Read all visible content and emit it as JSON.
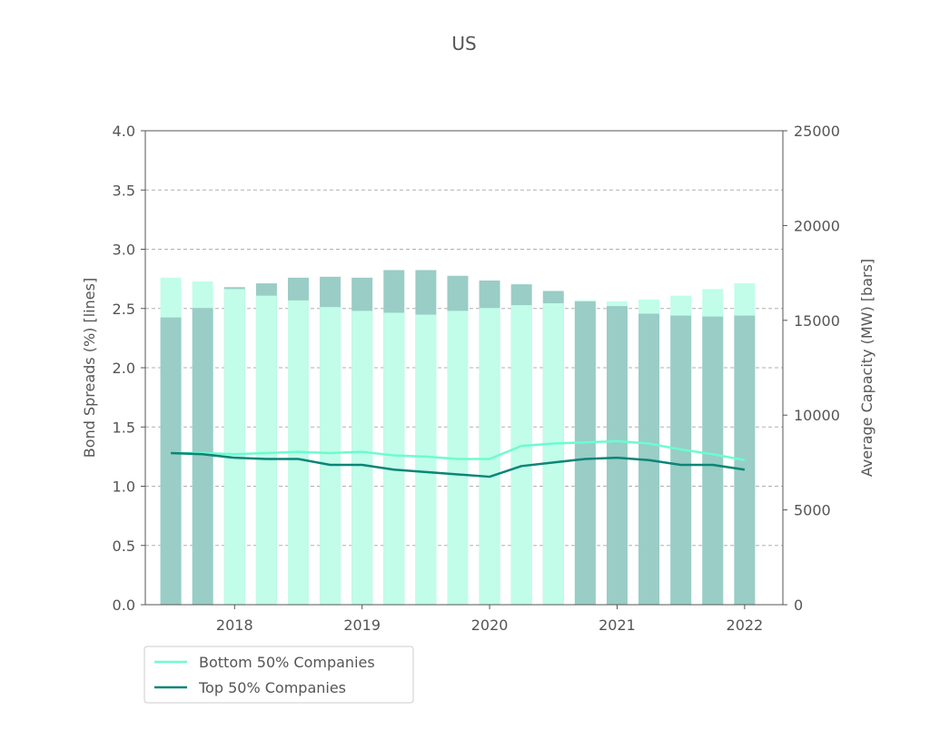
{
  "chart_data": {
    "type": "bar+line",
    "title": "US",
    "ylabel_left": "Bond Spreads (%) [lines]",
    "ylabel_right": "Average Capacity (MW) [bars]",
    "ylim_left": [
      0,
      4.0
    ],
    "ylim_right": [
      0,
      25000
    ],
    "yticks_left": [
      "0.0",
      "0.5",
      "1.0",
      "1.5",
      "2.0",
      "2.5",
      "3.0",
      "3.5",
      "4.0"
    ],
    "yticks_right": [
      "0",
      "5000",
      "10000",
      "15000",
      "20000",
      "25000"
    ],
    "xticks": [
      "2018",
      "2019",
      "2020",
      "2021",
      "2022"
    ],
    "grid": "horizontal dashed",
    "legend_position": "below-left",
    "colors": {
      "light_bar": "#c1fde9",
      "dark_bar": "#99cdc6",
      "bottom_line": "#6dfbd0",
      "top_line": "#0b8577",
      "axis": "#555555",
      "grid": "#b0b0b0"
    },
    "x": [
      2017.5,
      2017.75,
      2018.0,
      2018.25,
      2018.5,
      2018.75,
      2019.0,
      2019.25,
      2019.5,
      2019.75,
      2020.0,
      2020.25,
      2020.5,
      2020.75,
      2021.0,
      2021.25,
      2021.5,
      2021.75,
      2022.0
    ],
    "bar_series": [
      {
        "color_key": "light_bar",
        "values": [
          17250,
          17050,
          16650,
          16300,
          16050,
          15700,
          15500,
          15400,
          15300,
          15500,
          15650,
          15800,
          15900,
          16050,
          16000,
          16100,
          16300,
          16650,
          16950
        ]
      },
      {
        "color_key": "dark_bar",
        "values": [
          15150,
          15650,
          16750,
          16950,
          17250,
          17300,
          17250,
          17650,
          17650,
          17350,
          17100,
          16900,
          16550,
          16000,
          15750,
          15350,
          15250,
          15200,
          15250
        ]
      }
    ],
    "series": [
      {
        "name": "Bottom 50% Companies",
        "color_key": "bottom_line",
        "values": [
          1.28,
          1.28,
          1.27,
          1.28,
          1.29,
          1.28,
          1.29,
          1.26,
          1.25,
          1.23,
          1.23,
          1.34,
          1.36,
          1.37,
          1.38,
          1.36,
          1.31,
          1.27,
          1.22
        ]
      },
      {
        "name": "Top 50% Companies",
        "color_key": "top_line",
        "values": [
          1.28,
          1.27,
          1.24,
          1.23,
          1.23,
          1.18,
          1.18,
          1.14,
          1.12,
          1.1,
          1.08,
          1.17,
          1.2,
          1.23,
          1.24,
          1.22,
          1.18,
          1.18,
          1.14
        ]
      }
    ]
  }
}
